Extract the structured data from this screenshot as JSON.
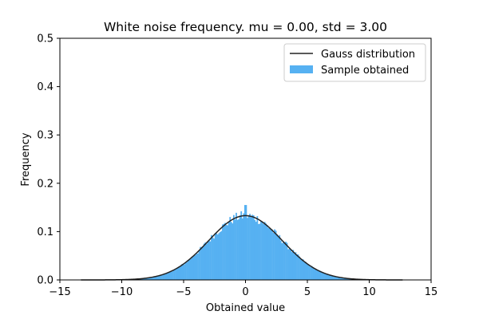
{
  "chart_data": {
    "type": "histogram",
    "title": "White noise frequency. mu = 0.00,  std = 3.00",
    "xlabel": "Obtained value",
    "ylabel": "Frequency",
    "xlim": [
      -15,
      15
    ],
    "ylim": [
      0,
      0.5
    ],
    "xticks": [
      -15,
      -10,
      -5,
      0,
      5,
      10,
      15
    ],
    "xtick_labels": [
      "−15",
      "−10",
      "−5",
      "0",
      "5",
      "10",
      "15"
    ],
    "yticks": [
      0.0,
      0.1,
      0.2,
      0.3,
      0.4,
      0.5
    ],
    "ytick_labels": [
      "0.0",
      "0.1",
      "0.2",
      "0.3",
      "0.4",
      "0.5"
    ],
    "grid": false,
    "legend_position": "top-right",
    "series": [
      {
        "name": "Gauss distribution",
        "kind": "line",
        "mu": 0.0,
        "std": 3.0,
        "x_range": [
          -13.3,
          12.7
        ],
        "color": "#222222"
      },
      {
        "name": "Sample obtained",
        "kind": "histogram",
        "bin_width": 0.1,
        "data_range": [
          -13.3,
          12.7
        ],
        "peak_value": 0.155,
        "color": "#56b1f2"
      }
    ]
  }
}
